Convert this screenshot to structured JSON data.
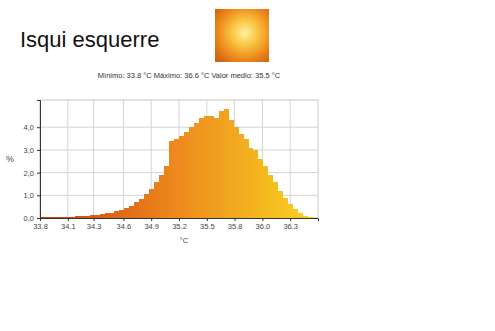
{
  "heading": "Isqui esquerre",
  "chart_data": {
    "type": "histogram",
    "title": "Mínimo: 33.8 °C Máximo: 36.6 °C Valor medio: 35.5 °C",
    "x_label": "°C",
    "y_label": "%",
    "bins": [
      33.8,
      33.85,
      33.9,
      33.95,
      34.0,
      34.05,
      34.1,
      34.15,
      34.2,
      34.25,
      34.3,
      34.35,
      34.4,
      34.45,
      34.5,
      34.55,
      34.6,
      34.65,
      34.7,
      34.75,
      34.8,
      34.85,
      34.9,
      34.95,
      35.0,
      35.05,
      35.1,
      35.15,
      35.2,
      35.25,
      35.3,
      35.35,
      35.4,
      35.45,
      35.5,
      35.55,
      35.6,
      35.65,
      35.7,
      35.75,
      35.8,
      35.85,
      35.9,
      35.95,
      36.0,
      36.05,
      36.1,
      36.15,
      36.2,
      36.25,
      36.3,
      36.35,
      36.4,
      36.45,
      36.5,
      36.55,
      36.6
    ],
    "values": [
      0.05,
      0.05,
      0.05,
      0.05,
      0.05,
      0.06,
      0.06,
      0.07,
      0.08,
      0.1,
      0.12,
      0.14,
      0.17,
      0.2,
      0.24,
      0.3,
      0.36,
      0.45,
      0.55,
      0.7,
      0.85,
      1.05,
      1.3,
      1.6,
      1.9,
      2.3,
      3.4,
      3.5,
      3.6,
      3.8,
      4.0,
      4.2,
      4.4,
      4.5,
      4.5,
      4.4,
      4.7,
      4.8,
      4.3,
      4.0,
      3.7,
      3.5,
      3.1,
      3.0,
      2.6,
      2.3,
      1.9,
      1.6,
      1.2,
      0.9,
      0.6,
      0.4,
      0.2,
      0.1,
      0.05,
      0.02
    ],
    "xlim": [
      33.8,
      36.6
    ],
    "ylim": [
      0,
      5.2
    ],
    "xticks": [
      33.8,
      {
        "value": 34.08,
        "label": "34.1"
      },
      {
        "value": 34.34,
        "label": "34.3"
      },
      {
        "value": 34.64,
        "label": "34.6"
      },
      {
        "value": 34.92,
        "label": "34.9"
      },
      35.2,
      {
        "value": 35.48,
        "label": "35.5"
      },
      {
        "value": 35.76,
        "label": "35.8"
      },
      {
        "value": 36.04,
        "label": "36.0"
      },
      {
        "value": 36.32,
        "label": "36.3"
      }
    ],
    "yticks": [
      {
        "value": 0,
        "label": "0,0"
      },
      {
        "value": 1,
        "label": "1,0"
      },
      {
        "value": 2,
        "label": "2,0"
      },
      {
        "value": 3,
        "label": "3,0"
      },
      {
        "value": 4,
        "label": "4,0"
      }
    ],
    "grid": true
  }
}
